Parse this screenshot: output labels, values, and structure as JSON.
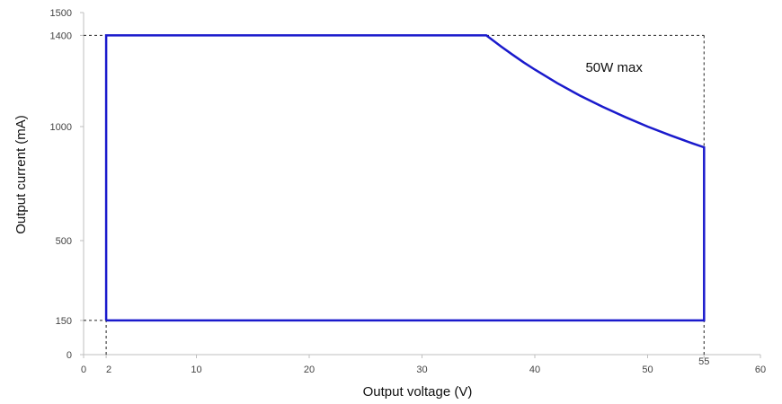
{
  "chart_data": {
    "type": "line",
    "title": "",
    "xlabel": "Output voltage (V)",
    "ylabel": "Output current (mA)",
    "xlim": [
      0,
      60
    ],
    "ylim": [
      0,
      1500
    ],
    "x_ticks": [
      {
        "value": 0,
        "label": "0"
      },
      {
        "value": 2,
        "label": "2"
      },
      {
        "value": 10,
        "label": "10"
      },
      {
        "value": 20,
        "label": "20"
      },
      {
        "value": 30,
        "label": "30"
      },
      {
        "value": 40,
        "label": "40"
      },
      {
        "value": 50,
        "label": "50"
      },
      {
        "value": 55,
        "label": "55"
      },
      {
        "value": 60,
        "label": "60"
      }
    ],
    "y_ticks": [
      {
        "value": 0,
        "label": "0"
      },
      {
        "value": 150,
        "label": "150"
      },
      {
        "value": 500,
        "label": "500"
      },
      {
        "value": 1000,
        "label": "1000"
      },
      {
        "value": 1400,
        "label": "1400"
      },
      {
        "value": 1500,
        "label": "1500"
      }
    ],
    "series": [
      {
        "color": "#1a1acc",
        "points": [
          [
            2,
            150
          ],
          [
            2,
            1400
          ],
          [
            35.7,
            1400
          ],
          [
            37,
            1351
          ],
          [
            38,
            1316
          ],
          [
            39,
            1282
          ],
          [
            40,
            1250
          ],
          [
            42,
            1190
          ],
          [
            44,
            1136
          ],
          [
            46,
            1087
          ],
          [
            48,
            1042
          ],
          [
            50,
            1000
          ],
          [
            52,
            962
          ],
          [
            54,
            926
          ],
          [
            55,
            909
          ],
          [
            55,
            150
          ],
          [
            2,
            150
          ]
        ]
      }
    ],
    "reference_lines": [
      {
        "points": [
          [
            0,
            1400
          ],
          [
            2,
            1400
          ]
        ]
      },
      {
        "points": [
          [
            0,
            150
          ],
          [
            2,
            150
          ]
        ]
      },
      {
        "points": [
          [
            2,
            0
          ],
          [
            2,
            150
          ]
        ]
      },
      {
        "points": [
          [
            35.7,
            1400
          ],
          [
            55,
            1400
          ]
        ]
      },
      {
        "points": [
          [
            55,
            1400
          ],
          [
            55,
            909
          ]
        ]
      },
      {
        "points": [
          [
            55,
            0
          ],
          [
            55,
            150
          ]
        ]
      }
    ],
    "annotations": [
      {
        "text": "50W max",
        "x": 44.5,
        "y": 1240
      }
    ],
    "grid": false
  }
}
